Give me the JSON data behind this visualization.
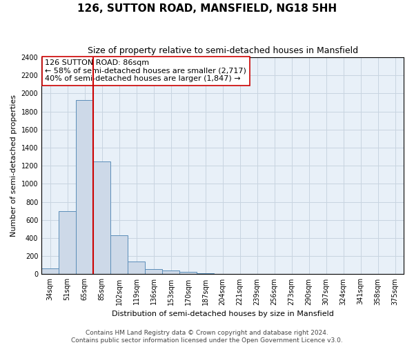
{
  "title1": "126, SUTTON ROAD, MANSFIELD, NG18 5HH",
  "title2": "Size of property relative to semi-detached houses in Mansfield",
  "xlabel": "Distribution of semi-detached houses by size in Mansfield",
  "ylabel": "Number of semi-detached properties",
  "categories": [
    "34sqm",
    "51sqm",
    "65sqm",
    "85sqm",
    "102sqm",
    "119sqm",
    "136sqm",
    "153sqm",
    "170sqm",
    "187sqm",
    "204sqm",
    "221sqm",
    "239sqm",
    "256sqm",
    "273sqm",
    "290sqm",
    "307sqm",
    "324sqm",
    "341sqm",
    "358sqm",
    "375sqm"
  ],
  "values": [
    68,
    700,
    1930,
    1250,
    430,
    140,
    55,
    40,
    25,
    12,
    0,
    0,
    0,
    0,
    0,
    0,
    0,
    0,
    0,
    0,
    0
  ],
  "bar_color": "#cdd9e8",
  "bar_edge_color": "#5b8db8",
  "vline_x": 2.5,
  "vline_color": "#cc0000",
  "annotation_text": "126 SUTTON ROAD: 86sqm\n← 58% of semi-detached houses are smaller (2,717)\n40% of semi-detached houses are larger (1,847) →",
  "annotation_box_color": "#ffffff",
  "annotation_box_edge_color": "#cc0000",
  "ylim": [
    0,
    2400
  ],
  "yticks": [
    0,
    200,
    400,
    600,
    800,
    1000,
    1200,
    1400,
    1600,
    1800,
    2000,
    2200,
    2400
  ],
  "footnote": "Contains HM Land Registry data © Crown copyright and database right 2024.\nContains public sector information licensed under the Open Government Licence v3.0.",
  "grid_color": "#c8d4e0",
  "background_color": "#e8f0f8",
  "title1_fontsize": 11,
  "title2_fontsize": 9,
  "annotation_fontsize": 8,
  "tick_fontsize": 7,
  "label_fontsize": 8,
  "footnote_fontsize": 6.5
}
